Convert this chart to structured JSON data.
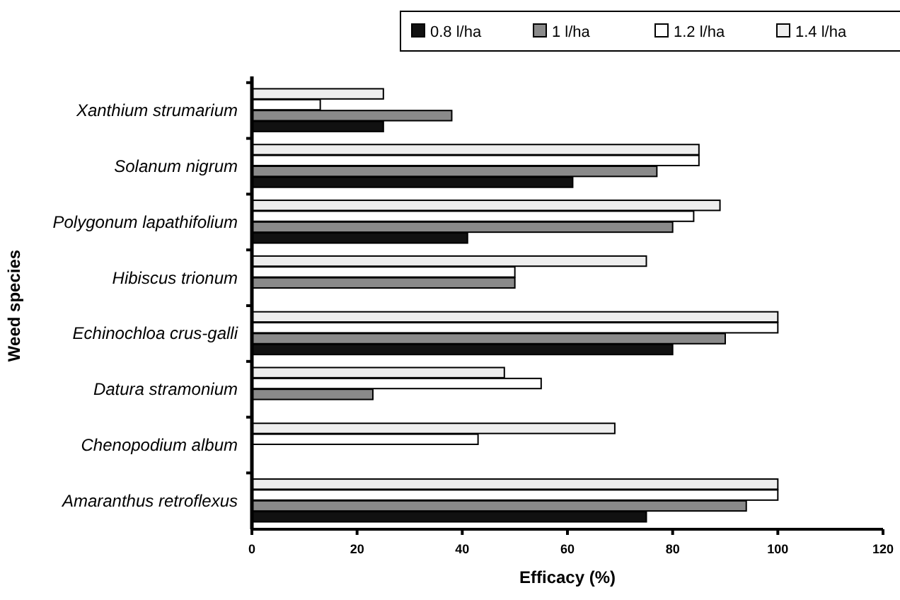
{
  "chart_data": {
    "type": "bar",
    "orientation": "horizontal",
    "xlabel": "Efficacy (%)",
    "ylabel": "Weed species",
    "categories": [
      "Xanthium strumarium",
      "Solanum nigrum",
      "Polygonum lapathifolium",
      "Hibiscus trionum",
      "Echinochloa crus-galli",
      "Datura stramonium",
      "Chenopodium album",
      "Amaranthus retroflexus"
    ],
    "series": [
      {
        "name": "0.8 l/ha",
        "color": "#111111",
        "values": [
          25,
          61,
          41,
          0,
          80,
          0,
          0,
          75
        ]
      },
      {
        "name": "1 l/ha",
        "color": "#8a8a8a",
        "values": [
          38,
          77,
          80,
          50,
          90,
          23,
          0,
          94
        ]
      },
      {
        "name": "1.2 l/ha",
        "color": "#ffffff",
        "values": [
          13,
          85,
          84,
          50,
          100,
          55,
          43,
          100
        ]
      },
      {
        "name": "1.4 l/ha",
        "color": "#eeeeee",
        "values": [
          25,
          85,
          89,
          75,
          100,
          48,
          69,
          100
        ]
      }
    ],
    "xlim": [
      0,
      120
    ],
    "xticks": [
      0,
      20,
      40,
      60,
      80,
      100,
      120
    ],
    "grid": false,
    "legend": "top"
  }
}
